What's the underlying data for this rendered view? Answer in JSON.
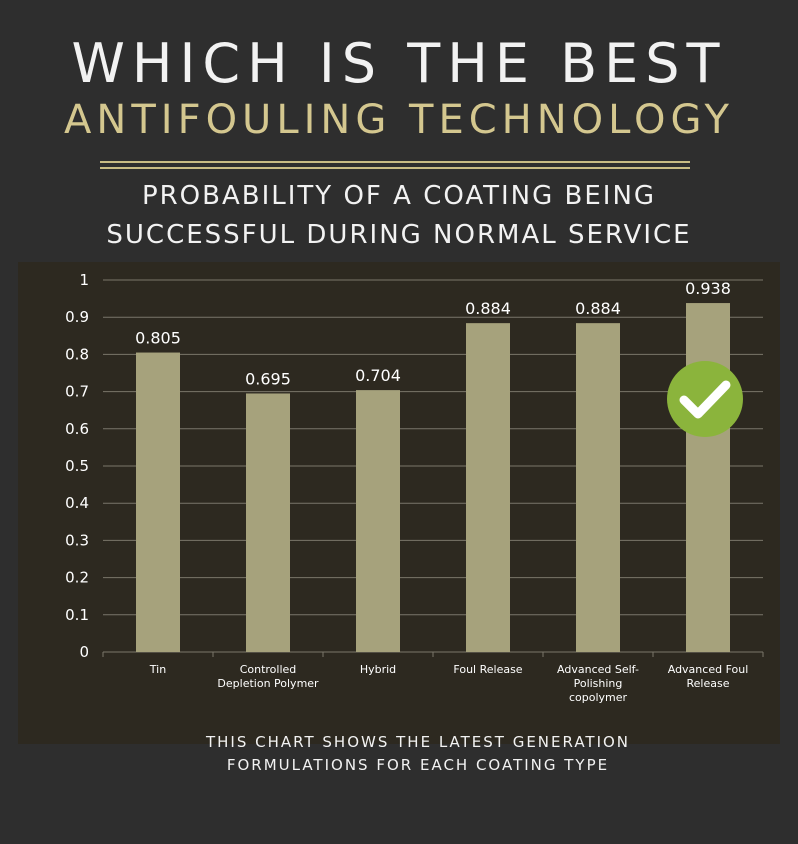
{
  "title": {
    "line1": "WHICH IS THE BEST",
    "line2": "ANTIFOULING TECHNOLOGY"
  },
  "subtitle": {
    "line1": "PROBABILITY OF A COATING BEING",
    "line2": "SUCCESSFUL DURING NORMAL SERVICE"
  },
  "footnote": {
    "line1": "THIS CHART SHOWS THE LATEST GENERATION",
    "line2": "FORMULATIONS FOR EACH COATING TYPE"
  },
  "colors": {
    "background": "#2e2e2e",
    "panel": "#2d2920",
    "accent_gold": "#d4c78f",
    "bar": "#a6a27c",
    "gridline": "#7a766a",
    "check_badge": "#8bb43c"
  },
  "icons": {
    "highlight": "check-circle-icon"
  },
  "chart_data": {
    "type": "bar",
    "categories": [
      [
        "Tin"
      ],
      [
        "Controlled",
        "Depletion Polymer"
      ],
      [
        "Hybrid"
      ],
      [
        "Foul Release"
      ],
      [
        "Advanced Self-",
        "Polishing",
        "copolymer"
      ],
      [
        "Advanced Foul",
        "Release"
      ]
    ],
    "values": [
      0.805,
      0.695,
      0.704,
      0.884,
      0.884,
      0.938
    ],
    "value_labels": [
      "0.805",
      "0.695",
      "0.704",
      "0.884",
      "0.884",
      "0.938"
    ],
    "ylim": [
      0,
      1
    ],
    "yticks": [
      "0",
      "0.1",
      "0.2",
      "0.3",
      "0.4",
      "0.5",
      "0.6",
      "0.7",
      "0.8",
      "0.9",
      "1"
    ],
    "grid": true,
    "legend": "none",
    "highlighted_category_index": 5
  }
}
